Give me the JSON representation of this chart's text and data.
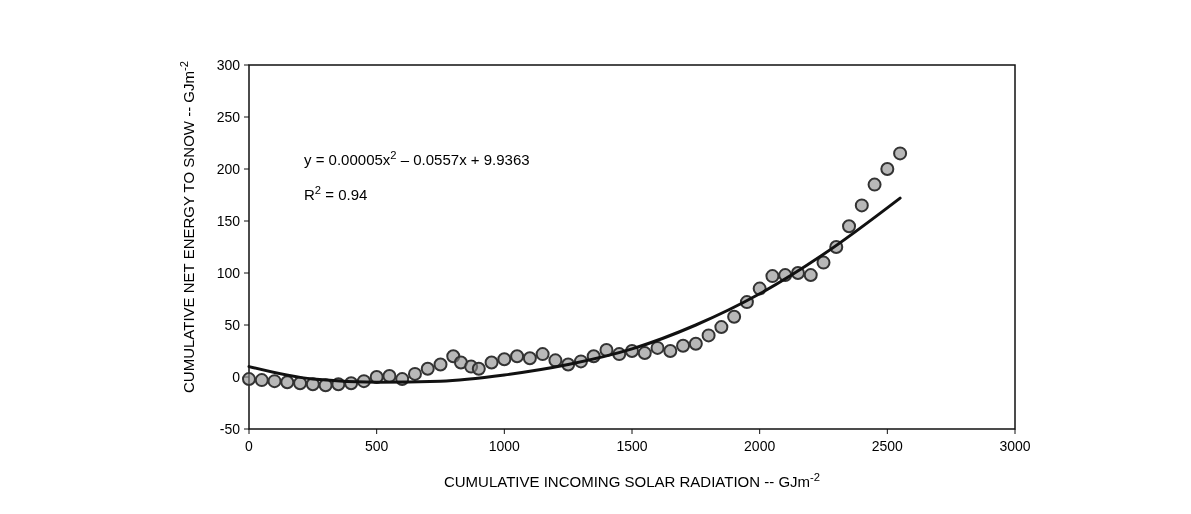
{
  "chart_data": {
    "type": "scatter",
    "xlabel": "CUMULATIVE INCOMING SOLAR RADIATION -- GJm$^{-2}$",
    "ylabel": "CUMULATIVE NET ENERGY TO SNOW -- GJm$^{-2}$",
    "xlim": [
      0,
      3000
    ],
    "xticks": [
      0,
      500,
      1000,
      1500,
      2000,
      2500,
      3000
    ],
    "ylim": [
      -50,
      300
    ],
    "yticks": [
      -50,
      0,
      50,
      100,
      150,
      200,
      250,
      300
    ],
    "annotations": [
      "y = 0.00005x$^{2}$ – 0.0557x  + 9.9363",
      "R$^{2}$ = 0.94"
    ],
    "series": [
      {
        "color": "#333333",
        "marker": "circle",
        "x": [
          0,
          50,
          100,
          150,
          200,
          250,
          300,
          350,
          400,
          450,
          500,
          550,
          600,
          650,
          700,
          750,
          800,
          830,
          870,
          900,
          950,
          1000,
          1050,
          1100,
          1150,
          1200,
          1250,
          1300,
          1350,
          1400,
          1450,
          1500,
          1550,
          1600,
          1650,
          1700,
          1750,
          1800,
          1850,
          1900,
          1950,
          2000,
          2050,
          2100,
          2150,
          2200,
          2250,
          2300,
          2350,
          2400,
          2450,
          2500,
          2550
        ],
        "values": [
          -2,
          -3,
          -4,
          -5,
          -6,
          -7,
          -8,
          -7,
          -6,
          -4,
          0,
          1,
          -2,
          3,
          8,
          12,
          20,
          14,
          10,
          8,
          14,
          17,
          20,
          18,
          22,
          16,
          12,
          15,
          20,
          26,
          22,
          25,
          23,
          28,
          25,
          30,
          32,
          40,
          48,
          58,
          72,
          85,
          97,
          98,
          100,
          98,
          110,
          125,
          145,
          165,
          185,
          200,
          215
        ]
      },
      {
        "type": "line",
        "color": "#111111",
        "marker": "none",
        "line_style": "solid",
        "x": [
          0,
          250,
          500,
          750,
          1000,
          1250,
          1500,
          1750,
          2000,
          2250,
          2550
        ],
        "values": [
          10,
          -2,
          -5,
          -4,
          2,
          12,
          27,
          50,
          80,
          118,
          172
        ]
      }
    ]
  }
}
